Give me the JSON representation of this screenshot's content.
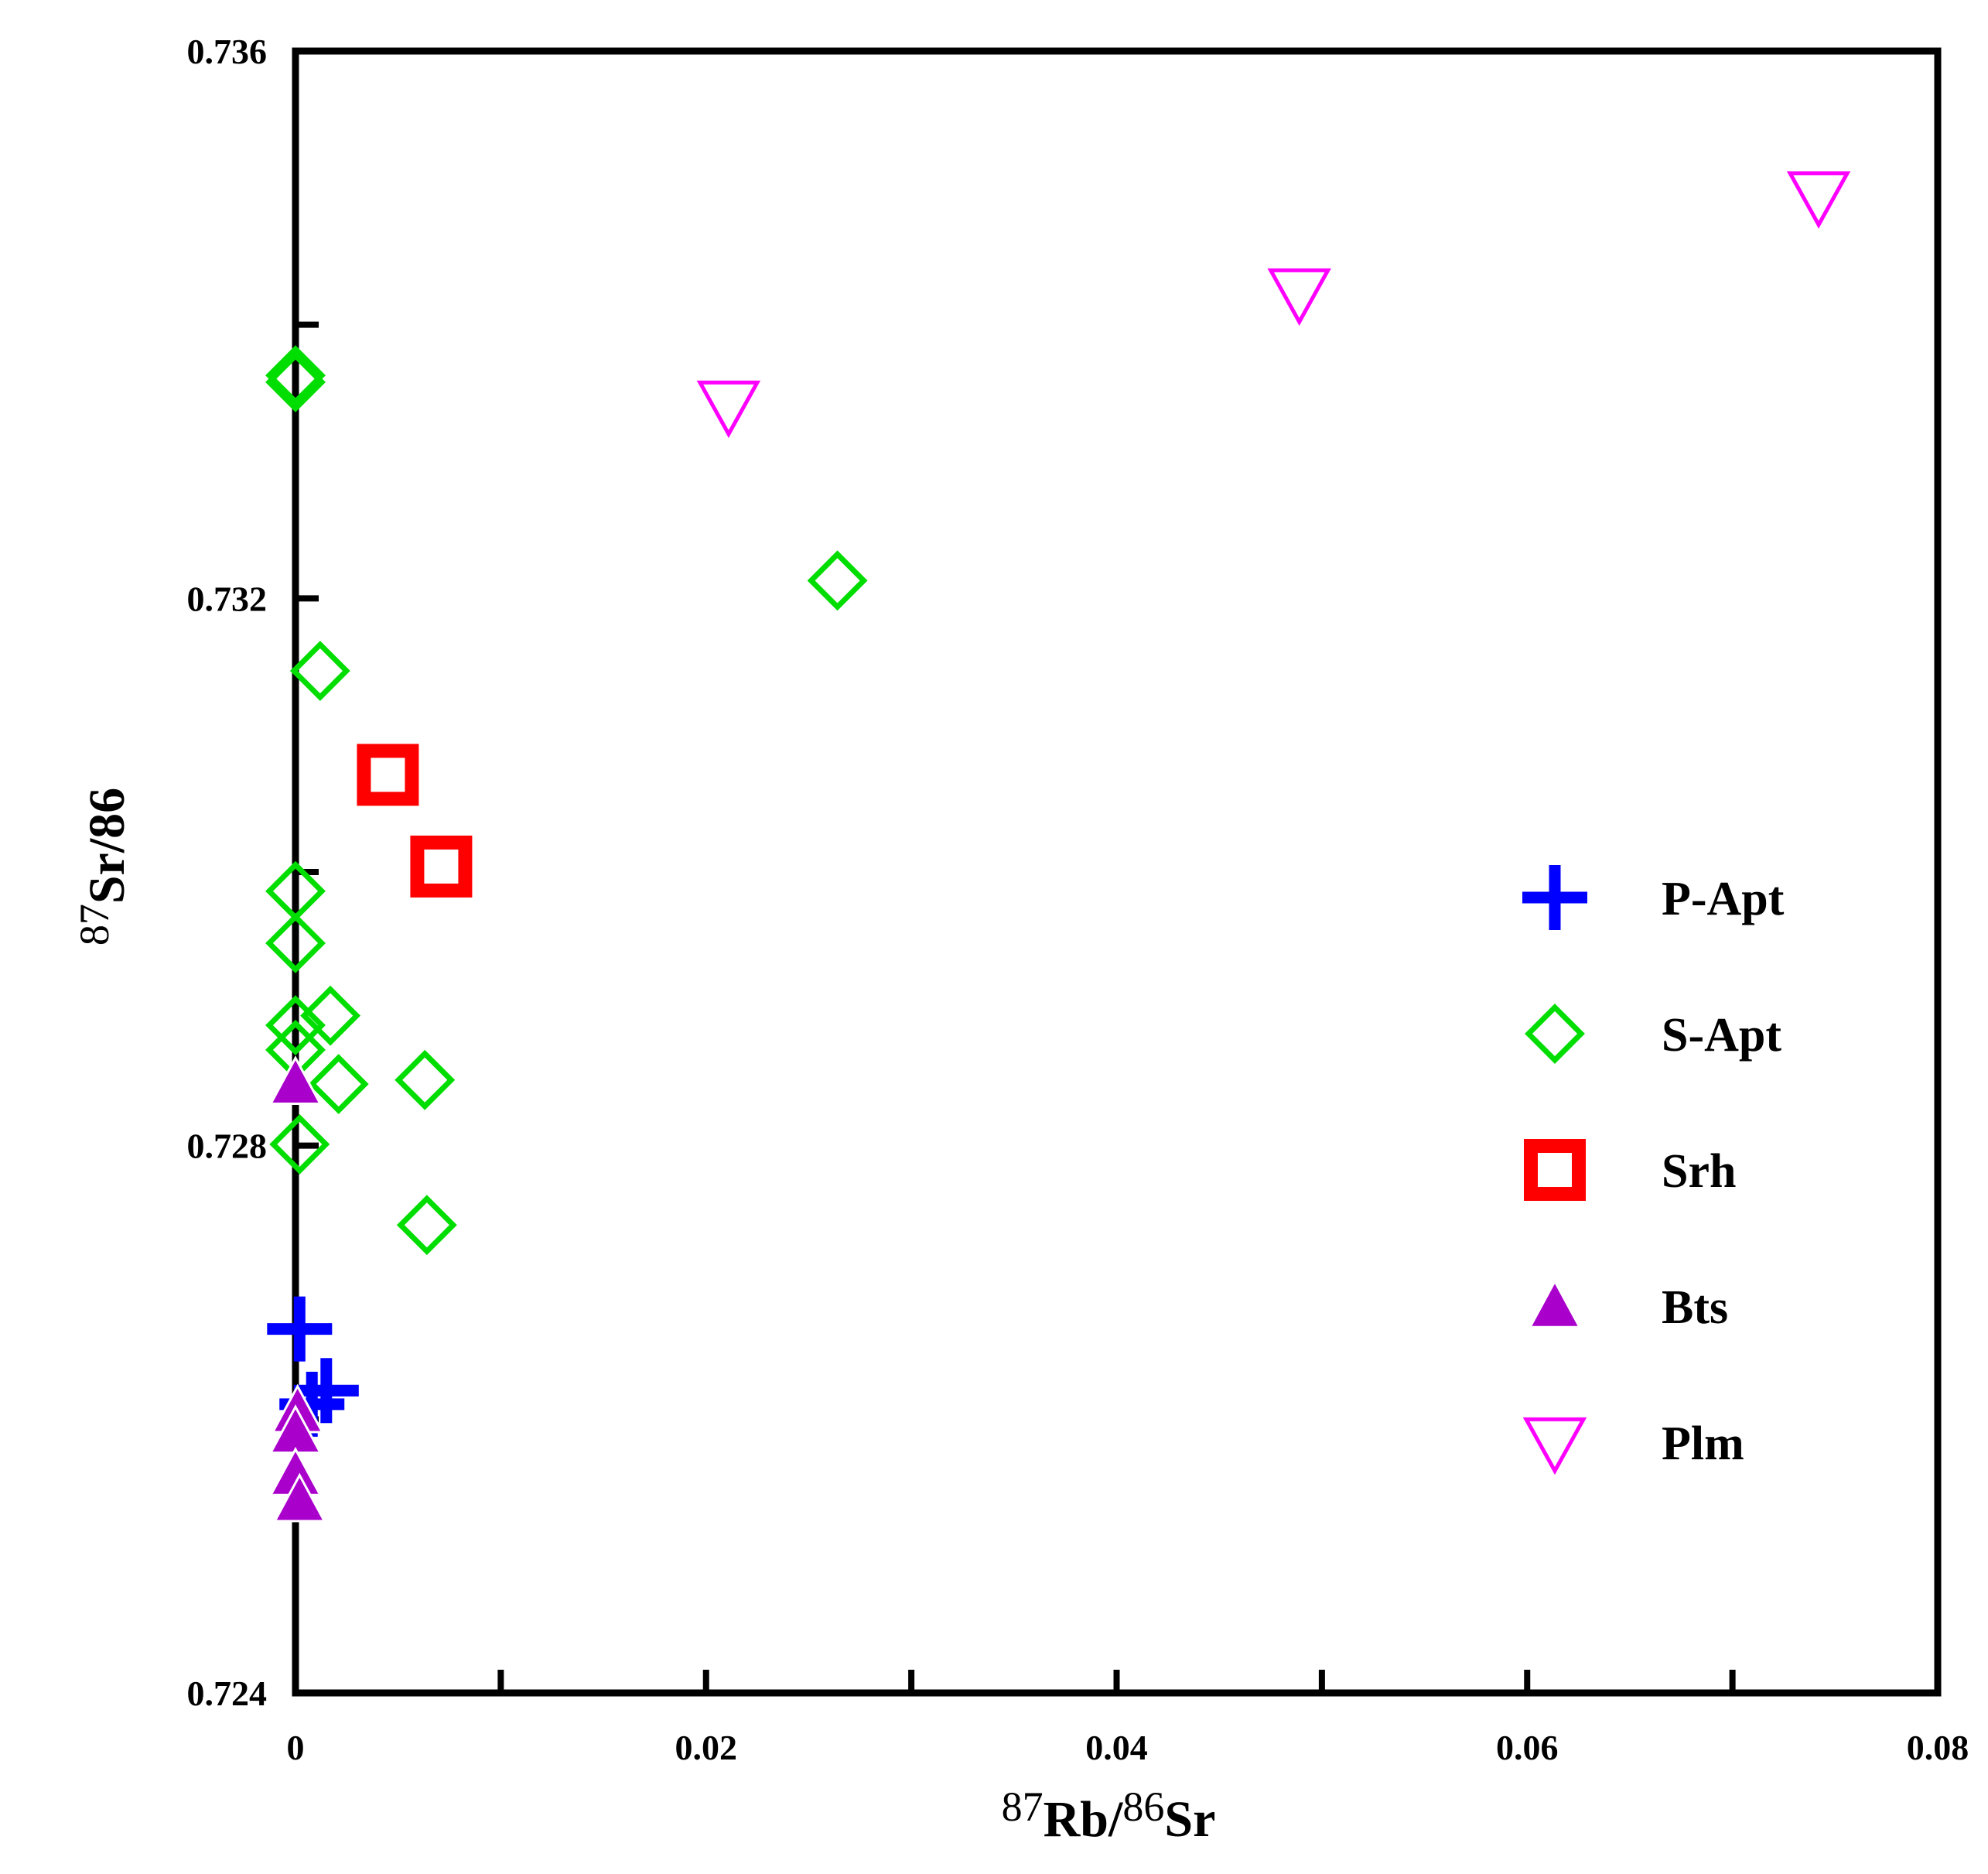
{
  "chart_data": {
    "type": "scatter",
    "title": "",
    "xlabel": {
      "sup1": "87",
      "base1": "Rb/",
      "sup2": "86",
      "base2": "Sr"
    },
    "ylabel": {
      "sup1": "87",
      "base1": "Sr/86"
    },
    "xlim": [
      0,
      0.08
    ],
    "ylim": [
      0.724,
      0.736
    ],
    "x_ticks": [
      0,
      0.01,
      0.02,
      0.03,
      0.04,
      0.05,
      0.06,
      0.07,
      0.08
    ],
    "x_tick_labels": [
      {
        "value": 0,
        "label": "0"
      },
      {
        "value": 0.02,
        "label": "0.02"
      },
      {
        "value": 0.04,
        "label": "0.04"
      },
      {
        "value": 0.06,
        "label": "0.06"
      },
      {
        "value": 0.08,
        "label": "0.08"
      }
    ],
    "y_ticks": [
      0.724,
      0.726,
      0.728,
      0.73,
      0.732,
      0.734,
      0.736
    ],
    "y_tick_labels": [
      {
        "value": 0.724,
        "label": "0.724"
      },
      {
        "value": 0.728,
        "label": "0.728"
      },
      {
        "value": 0.732,
        "label": "0.732"
      },
      {
        "value": 0.736,
        "label": "0.736"
      }
    ],
    "grid": false,
    "legend_position": "right",
    "series": [
      {
        "name": "P-Apt",
        "marker": "plus",
        "color": "#0000ff",
        "points": [
          {
            "x": 0.0002,
            "y": 0.72666
          },
          {
            "x": 0.0015,
            "y": 0.72621
          },
          {
            "x": 0.0008,
            "y": 0.72611
          }
        ]
      },
      {
        "name": "S-Apt",
        "marker": "diamond-open",
        "color": "#00dd00",
        "points": [
          {
            "x": 0.0,
            "y": 0.73363
          },
          {
            "x": 0.0,
            "y": 0.73358
          },
          {
            "x": 0.0264,
            "y": 0.73213
          },
          {
            "x": 0.0012,
            "y": 0.73147
          },
          {
            "x": 0.0,
            "y": 0.72986
          },
          {
            "x": 0.0,
            "y": 0.72948
          },
          {
            "x": 0.0017,
            "y": 0.72895
          },
          {
            "x": 0.0,
            "y": 0.72888
          },
          {
            "x": 0.0,
            "y": 0.7287
          },
          {
            "x": 0.0063,
            "y": 0.72848
          },
          {
            "x": 0.0021,
            "y": 0.72845
          },
          {
            "x": 0.0002,
            "y": 0.72801
          },
          {
            "x": 0.0064,
            "y": 0.72742
          }
        ]
      },
      {
        "name": "Srh",
        "marker": "square-open",
        "color": "#ff0000",
        "points": [
          {
            "x": 0.0045,
            "y": 0.73071
          },
          {
            "x": 0.0071,
            "y": 0.73004
          }
        ]
      },
      {
        "name": "Bts",
        "marker": "triangle-up-filled",
        "color": "#aa00cc",
        "points": [
          {
            "x": 0.0,
            "y": 0.72846
          },
          {
            "x": 0.0001,
            "y": 0.72606
          },
          {
            "x": 0.0,
            "y": 0.72591
          },
          {
            "x": 0.0,
            "y": 0.7256
          },
          {
            "x": 0.0002,
            "y": 0.72541
          }
        ]
      },
      {
        "name": "Plm",
        "marker": "triangle-down-open",
        "color": "#ff00ff",
        "points": [
          {
            "x": 0.0211,
            "y": 0.73341
          },
          {
            "x": 0.0489,
            "y": 0.73423
          },
          {
            "x": 0.0742,
            "y": 0.73494
          }
        ]
      }
    ]
  }
}
